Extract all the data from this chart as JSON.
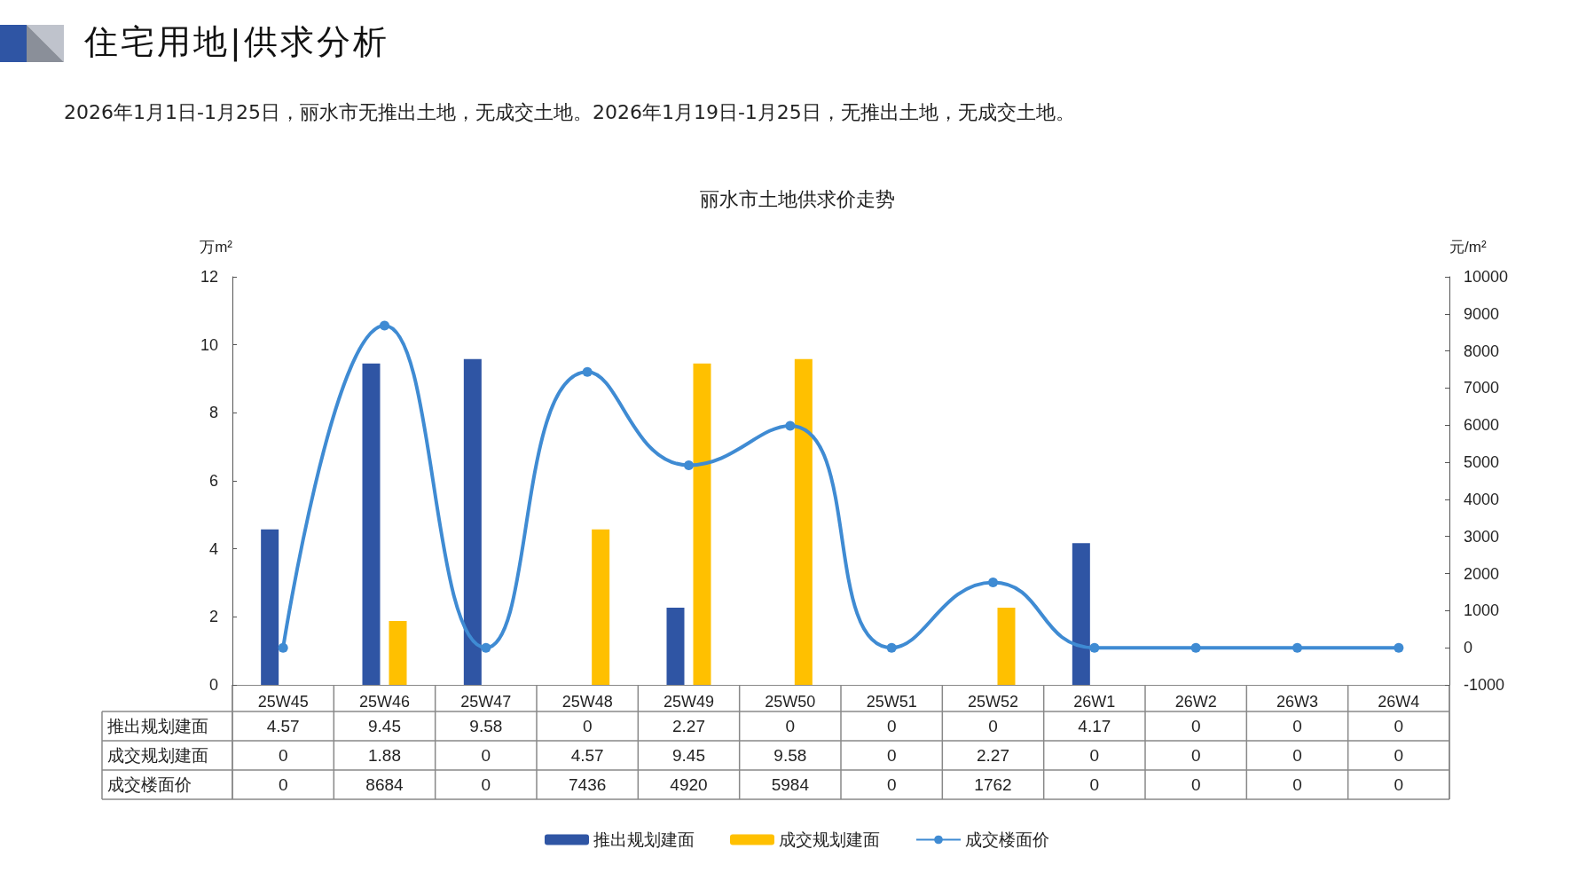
{
  "chart_data": {
    "type": "bar",
    "title": "丽水市土地供求价走势",
    "annotations": [
      "住宅用地|供求分析",
      "2026年1月1日-1月25日，丽水市无推出土地，无成交土地。2026年1月19日-1月25日，无推出土地，无成交土地。"
    ],
    "ylabel": "万m²",
    "y2label": "元/m²",
    "categories": [
      "25W45",
      "25W46",
      "25W47",
      "25W48",
      "25W49",
      "25W50",
      "25W51",
      "25W52",
      "26W1",
      "26W2",
      "26W3",
      "26W4"
    ],
    "series": [
      {
        "name": "推出规划建面",
        "color": "#2f55a4",
        "values": [
          4.57,
          9.45,
          9.58,
          0,
          2.27,
          0,
          0,
          0,
          4.17,
          0,
          0,
          0
        ]
      },
      {
        "name": "成交规划建面",
        "color": "#ffc000",
        "values": [
          0,
          1.88,
          0,
          4.57,
          9.45,
          9.58,
          0,
          2.27,
          0,
          0,
          0,
          0
        ]
      },
      {
        "name": "成交楼面价",
        "type": "line",
        "axis": "y2",
        "color": "#3f8bd3",
        "values": [
          0,
          8684,
          0,
          7436,
          4920,
          5984,
          0,
          1762,
          0,
          0,
          0,
          0
        ]
      }
    ],
    "ylim": [
      0,
      12
    ],
    "yticks": [
      0,
      2,
      4,
      6,
      8,
      10,
      12
    ],
    "y2lim": [
      -1000,
      10000
    ],
    "y2ticks": [
      -1000,
      0,
      1000,
      2000,
      3000,
      4000,
      5000,
      6000,
      7000,
      8000,
      9000,
      10000
    ],
    "data_labels": true,
    "grid": false,
    "legend": "bottom",
    "marker": "circle"
  }
}
